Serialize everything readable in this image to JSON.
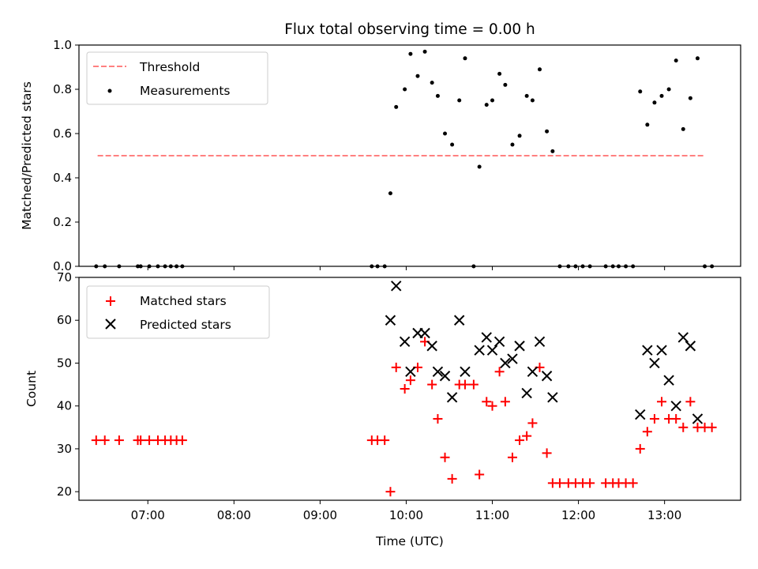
{
  "chart_data": [
    {
      "type": "scatter",
      "title": "Flux total observing time = 0.00 h",
      "xlabel": "",
      "ylabel": "Matched/Predicted stars",
      "xlim": [
        "06:12",
        "13:53"
      ],
      "ylim": [
        0.0,
        1.0
      ],
      "yticks": [
        "0.0",
        "0.2",
        "0.4",
        "0.6",
        "0.8",
        "1.0"
      ],
      "grid": false,
      "legend_position": "top-left",
      "threshold": {
        "name": "Threshold",
        "value": 0.5,
        "x_range": [
          "06:25",
          "13:28"
        ],
        "color": "#ff8080"
      },
      "series": [
        {
          "name": "Measurements",
          "color": "#000000",
          "marker": "dot",
          "x": [
            "06:24",
            "06:30",
            "06:40",
            "06:53",
            "06:55",
            "07:01",
            "07:07",
            "07:12",
            "07:16",
            "07:20",
            "07:24",
            "09:36",
            "09:40",
            "09:45",
            "09:49",
            "09:53",
            "09:59",
            "10:03",
            "10:08",
            "10:13",
            "10:18",
            "10:22",
            "10:27",
            "10:32",
            "10:37",
            "10:41",
            "10:47",
            "10:51",
            "10:56",
            "11:00",
            "11:05",
            "11:09",
            "11:14",
            "11:19",
            "11:24",
            "11:28",
            "11:33",
            "11:38",
            "11:42",
            "11:47",
            "11:53",
            "11:58",
            "12:03",
            "12:08",
            "12:19",
            "12:24",
            "12:28",
            "12:33",
            "12:38",
            "12:43",
            "12:48",
            "12:53",
            "12:58",
            "13:03",
            "13:08",
            "13:13",
            "13:18",
            "13:23",
            "13:28",
            "13:33"
          ],
          "y": [
            0,
            0,
            0,
            0,
            0,
            0,
            0,
            0,
            0,
            0,
            0,
            0,
            0,
            0,
            0.33,
            0.72,
            0.8,
            0.96,
            0.86,
            0.97,
            0.83,
            0.77,
            0.6,
            0.55,
            0.75,
            0.94,
            0,
            0.45,
            0.73,
            0.75,
            0.87,
            0.82,
            0.55,
            0.59,
            0.77,
            0.75,
            0.89,
            0.61,
            0.52,
            0,
            0,
            0,
            0,
            0,
            0,
            0,
            0,
            0,
            0,
            0.79,
            0.64,
            0.74,
            0.77,
            0.8,
            0.93,
            0.62,
            0.76,
            0.94,
            0,
            0
          ]
        }
      ]
    },
    {
      "type": "scatter",
      "title": "",
      "xlabel": "Time (UTC)",
      "ylabel": "Count",
      "xlim": [
        "06:12",
        "13:53"
      ],
      "ylim": [
        18,
        70
      ],
      "xticks": [
        "07:00",
        "08:00",
        "09:00",
        "10:00",
        "11:00",
        "12:00",
        "13:00"
      ],
      "yticks": [
        "20",
        "30",
        "40",
        "50",
        "60",
        "70"
      ],
      "grid": false,
      "legend_position": "top-left",
      "series": [
        {
          "name": "Matched stars",
          "color": "#ff0000",
          "marker": "plus",
          "x": [
            "06:24",
            "06:30",
            "06:40",
            "06:53",
            "06:55",
            "07:01",
            "07:07",
            "07:12",
            "07:16",
            "07:20",
            "07:24",
            "09:36",
            "09:40",
            "09:45",
            "09:49",
            "09:53",
            "09:59",
            "10:03",
            "10:08",
            "10:13",
            "10:18",
            "10:22",
            "10:27",
            "10:32",
            "10:37",
            "10:41",
            "10:47",
            "10:51",
            "10:56",
            "11:00",
            "11:05",
            "11:09",
            "11:14",
            "11:19",
            "11:24",
            "11:28",
            "11:33",
            "11:38",
            "11:42",
            "11:47",
            "11:53",
            "11:58",
            "12:03",
            "12:08",
            "12:19",
            "12:24",
            "12:28",
            "12:33",
            "12:38",
            "12:43",
            "12:48",
            "12:53",
            "12:58",
            "13:03",
            "13:08",
            "13:13",
            "13:18",
            "13:23",
            "13:28",
            "13:33"
          ],
          "y": [
            32,
            32,
            32,
            32,
            32,
            32,
            32,
            32,
            32,
            32,
            32,
            32,
            32,
            32,
            20,
            49,
            44,
            46,
            49,
            55,
            45,
            37,
            28,
            23,
            45,
            45,
            45,
            24,
            41,
            40,
            48,
            41,
            28,
            32,
            33,
            36,
            49,
            29,
            22,
            22,
            22,
            22,
            22,
            22,
            22,
            22,
            22,
            22,
            22,
            30,
            34,
            37,
            41,
            37,
            37,
            35,
            41,
            35,
            35,
            35
          ]
        },
        {
          "name": "Predicted stars",
          "color": "#000000",
          "marker": "x",
          "x": [
            "09:49",
            "09:53",
            "09:59",
            "10:03",
            "10:08",
            "10:13",
            "10:18",
            "10:22",
            "10:27",
            "10:32",
            "10:37",
            "10:41",
            "10:51",
            "10:56",
            "11:00",
            "11:05",
            "11:09",
            "11:14",
            "11:19",
            "11:24",
            "11:28",
            "11:33",
            "11:38",
            "11:42",
            "12:43",
            "12:48",
            "12:53",
            "12:58",
            "13:03",
            "13:08",
            "13:13",
            "13:18",
            "13:23"
          ],
          "y": [
            60,
            68,
            55,
            48,
            57,
            57,
            54,
            48,
            47,
            42,
            60,
            48,
            53,
            56,
            53,
            55,
            50,
            51,
            54,
            43,
            48,
            55,
            47,
            42,
            38,
            53,
            50,
            53,
            46,
            40,
            56,
            54,
            37
          ]
        }
      ]
    }
  ]
}
